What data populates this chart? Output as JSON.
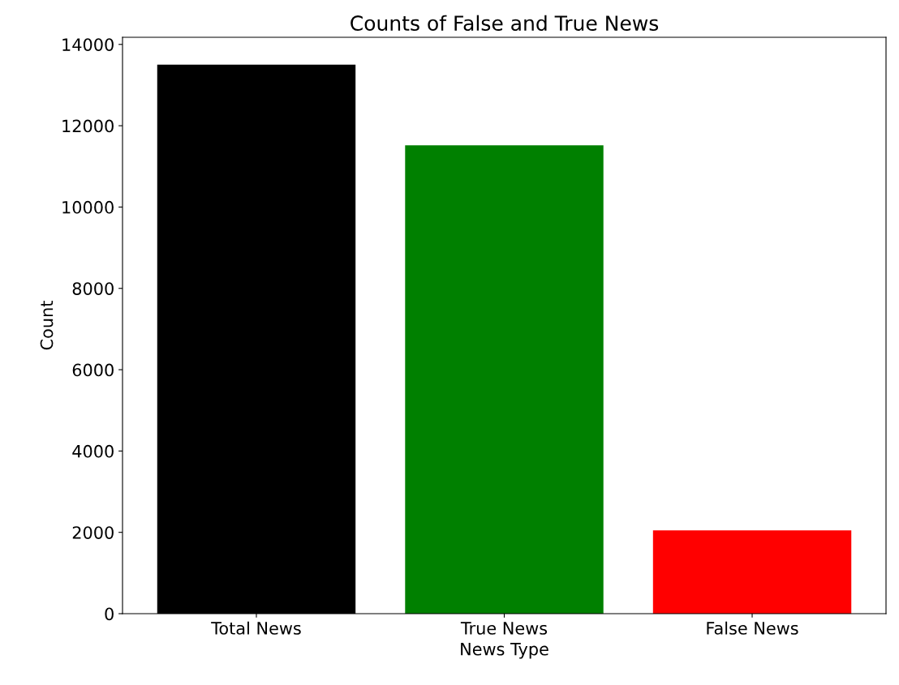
{
  "chart_data": {
    "type": "bar",
    "title": "Counts of False and True News",
    "xlabel": "News Type",
    "ylabel": "Count",
    "categories": [
      "Total News",
      "True News",
      "False News"
    ],
    "values": [
      13500,
      11520,
      2050
    ],
    "colors": [
      "#000000",
      "#008000",
      "#ff0000"
    ],
    "ylim": [
      0,
      14175
    ],
    "yticks": [
      0,
      2000,
      4000,
      6000,
      8000,
      10000,
      12000,
      14000
    ],
    "grid": false,
    "legend": false
  }
}
